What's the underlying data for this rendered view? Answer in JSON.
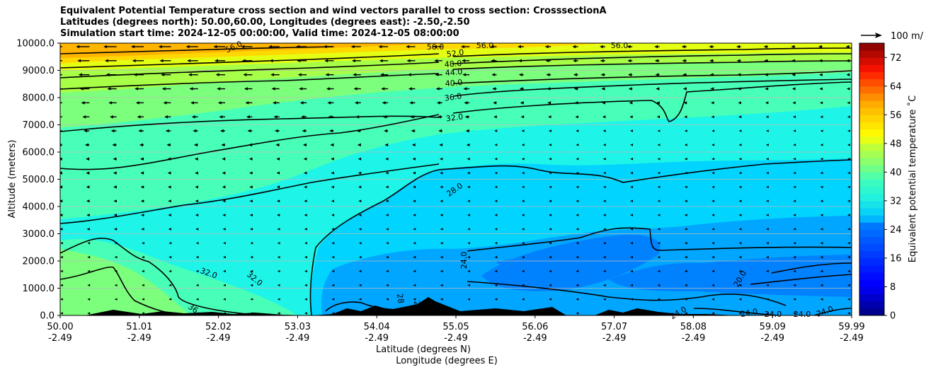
{
  "title": {
    "line1": "Equivalent Potential Temperature cross section and wind vectors parallel to cross section: CrosssectionA",
    "line2": "Latitudes (degrees north): 50.00,60.00, Longitudes (degrees east): -2.50,-2.50",
    "line3": "Simulation start time: 2024-12-05 00:00:00, Valid time: 2024-12-05 08:00:00"
  },
  "chart_data": {
    "type": "contourf",
    "ylabel": "Altitude (meters)",
    "xlabel_lat": "Latitude (degrees N)",
    "xlabel_lon": "Longitude (degrees E)",
    "ylim": [
      0,
      10000
    ],
    "xlim": [
      50.0,
      59.99
    ],
    "yticks": [
      "0.0",
      "1000.0",
      "2000.0",
      "3000.0",
      "4000.0",
      "5000.0",
      "6000.0",
      "7000.0",
      "8000.0",
      "9000.0",
      "10000.0"
    ],
    "xticks": [
      {
        "lat": "50.00",
        "lon": "-2.49"
      },
      {
        "lat": "51.01",
        "lon": "-2.49"
      },
      {
        "lat": "52.02",
        "lon": "-2.49"
      },
      {
        "lat": "53.03",
        "lon": "-2.49"
      },
      {
        "lat": "54.04",
        "lon": "-2.49"
      },
      {
        "lat": "55.05",
        "lon": "-2.49"
      },
      {
        "lat": "56.06",
        "lon": "-2.49"
      },
      {
        "lat": "57.07",
        "lon": "-2.49"
      },
      {
        "lat": "58.08",
        "lon": "-2.49"
      },
      {
        "lat": "59.09",
        "lon": "-2.49"
      },
      {
        "lat": "59.99",
        "lon": "-2.49"
      }
    ],
    "colorbar": {
      "label": "Equivalent potential temperature ˚C",
      "ticks": [
        "0",
        "8",
        "16",
        "24",
        "32",
        "40",
        "48",
        "56",
        "64",
        "72"
      ],
      "range": [
        0,
        76
      ]
    },
    "quiver_key": "100 m/",
    "contour_labels": [
      "56.0",
      "56.0",
      "56.0",
      "56.0",
      "52.0",
      "48.0",
      "44.0",
      "40.0",
      "36.0",
      "32.0",
      "28.0",
      "24.0",
      "32.0",
      "32.0",
      "36",
      "28",
      "28",
      "20.0",
      "24.0",
      "24.0",
      "24.0",
      "24.0",
      "24.0"
    ],
    "colors": {
      "c20": "#0082ff",
      "c24": "#00a6ff",
      "c28": "#00d4ff",
      "c32": "#1ef4e8",
      "c36": "#48ffb8",
      "c40": "#7cff7c",
      "c44": "#a8ff48",
      "c48": "#e4ff14",
      "c52": "#ffd800",
      "c56": "#ffb400"
    }
  }
}
